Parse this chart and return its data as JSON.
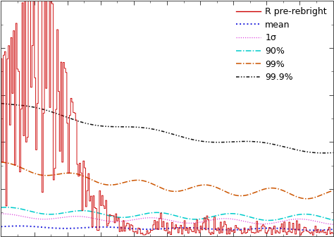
{
  "legend_labels": [
    "R pre-rebright",
    "mean",
    "1σ",
    "90%",
    "99%",
    "99.9%"
  ],
  "bg_color": "#ffffff",
  "signal_color": "#cc0000",
  "mean_color": "#2222dd",
  "sigma1_color": "#dd44dd",
  "p90_color": "#00cccc",
  "p99_color": "#cc5500",
  "p999_color": "#111111",
  "ylim_max": 1.0,
  "n_points": 800
}
